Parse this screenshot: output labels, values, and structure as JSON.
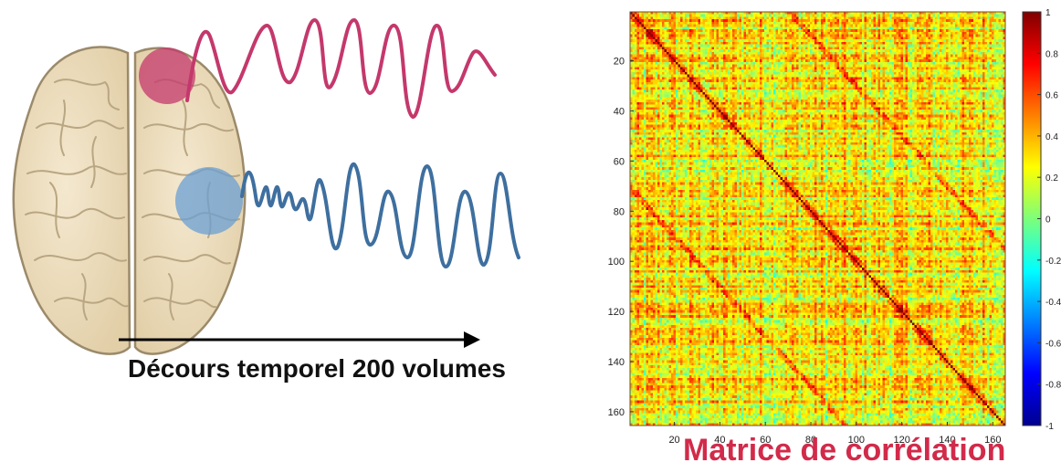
{
  "timeline_label": "Décours temporel 200 volumes",
  "matrix_title": "Matrice de corrélation",
  "colors": {
    "region_1": "#c4386c",
    "region_2": "#3e6f9f",
    "title_red": "#d22a4a"
  },
  "chart_data": {
    "type": "heatmap",
    "title": "Matrice de corrélation",
    "x_ticks": [
      20,
      40,
      60,
      80,
      100,
      120,
      140,
      160
    ],
    "y_ticks": [
      20,
      40,
      60,
      80,
      100,
      120,
      140,
      160
    ],
    "size": 165,
    "colorbar": {
      "colormap": "jet",
      "range": [
        -1,
        1
      ],
      "ticks": [
        "1",
        "0.8",
        "0.6",
        "0.4",
        "0.2",
        "0",
        "-0.2",
        "-0.4",
        "-0.6",
        "-0.8",
        "-1"
      ]
    },
    "diagonal_value": 1
  }
}
